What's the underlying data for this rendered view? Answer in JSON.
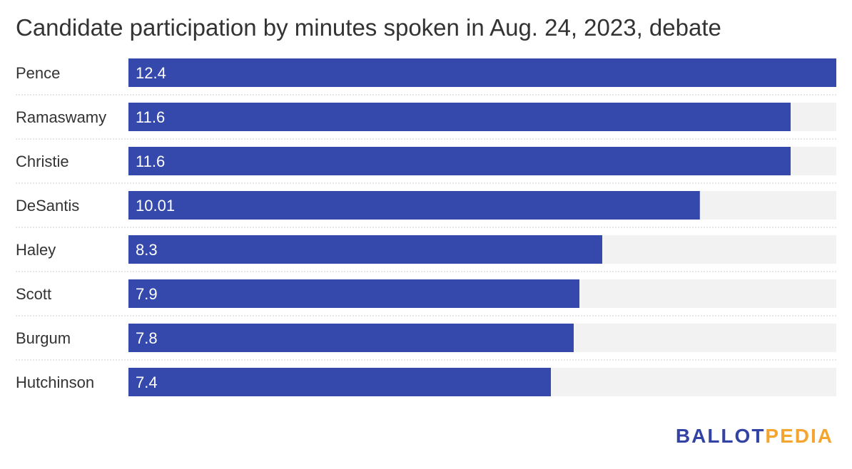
{
  "chart_data": {
    "type": "bar",
    "orientation": "horizontal",
    "title": "Candidate participation by minutes spoken in Aug. 24, 2023, debate",
    "categories": [
      "Pence",
      "Ramaswamy",
      "Christie",
      "DeSantis",
      "Haley",
      "Scott",
      "Burgum",
      "Hutchinson"
    ],
    "values": [
      12.4,
      11.6,
      11.6,
      10.01,
      8.3,
      7.9,
      7.8,
      7.4
    ],
    "value_labels": [
      "12.4",
      "11.6",
      "11.6",
      "10.01",
      "8.3",
      "7.9",
      "7.8",
      "7.4"
    ],
    "xlim": [
      0,
      12.4
    ],
    "bar_color": "#3449ab",
    "track_color": "#f2f2f2",
    "grid": false
  },
  "branding": {
    "logo_part1": "BALLOT",
    "logo_part2": "PEDIA",
    "logo_color1": "#3343a4",
    "logo_color2": "#f3a530"
  }
}
